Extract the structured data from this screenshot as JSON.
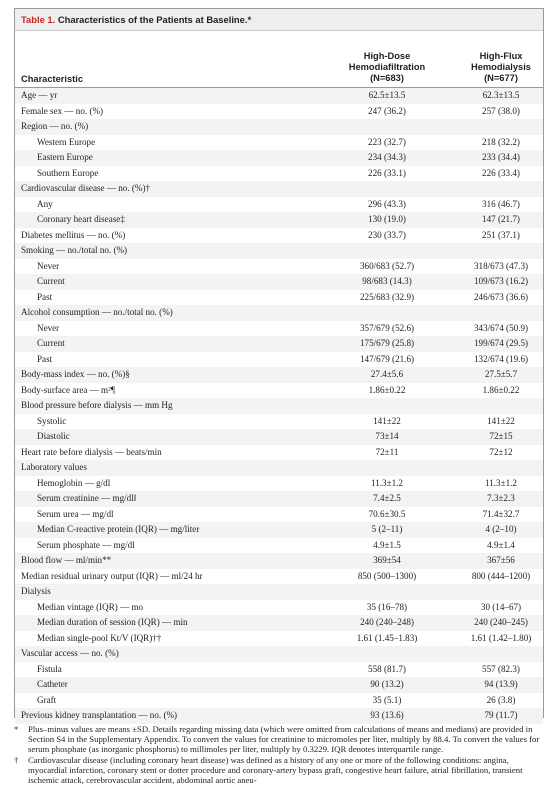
{
  "table": {
    "label": "Table 1.",
    "title": "Characteristics of the Patients at Baseline.*"
  },
  "headers": {
    "characteristic": "Characteristic",
    "col1": [
      "High-Dose",
      "Hemodiafiltration",
      "(N=683)"
    ],
    "col2": [
      "High-Flux",
      "Hemodialysis",
      "(N=677)"
    ]
  },
  "rows": [
    {
      "label": "Age — yr",
      "v1": "62.5±13.5",
      "v2": "62.3±13.5",
      "indent": false
    },
    {
      "label": "Female sex — no. (%)",
      "v1": "247 (36.2)",
      "v2": "257 (38.0)",
      "indent": false
    },
    {
      "label": "Region — no. (%)",
      "v1": "",
      "v2": "",
      "indent": false
    },
    {
      "label": "Western Europe",
      "v1": "223 (32.7)",
      "v2": "218 (32.2)",
      "indent": true
    },
    {
      "label": "Eastern Europe",
      "v1": "234 (34.3)",
      "v2": "233 (34.4)",
      "indent": true
    },
    {
      "label": "Southern Europe",
      "v1": "226 (33.1)",
      "v2": "226 (33.4)",
      "indent": true
    },
    {
      "label": "Cardiovascular disease — no. (%)†",
      "v1": "",
      "v2": "",
      "indent": false
    },
    {
      "label": "Any",
      "v1": "296 (43.3)",
      "v2": "316 (46.7)",
      "indent": true
    },
    {
      "label": "Coronary heart disease‡",
      "v1": "130 (19.0)",
      "v2": "147 (21.7)",
      "indent": true
    },
    {
      "label": "Diabetes mellitus — no. (%)",
      "v1": "230 (33.7)",
      "v2": "251 (37.1)",
      "indent": false
    },
    {
      "label": "Smoking — no./total no. (%)",
      "v1": "",
      "v2": "",
      "indent": false
    },
    {
      "label": "Never",
      "v1": "360/683 (52.7)",
      "v2": "318/673 (47.3)",
      "indent": true
    },
    {
      "label": "Current",
      "v1": "98/683 (14.3)",
      "v2": "109/673 (16.2)",
      "indent": true
    },
    {
      "label": "Past",
      "v1": "225/683 (32.9)",
      "v2": "246/673 (36.6)",
      "indent": true
    },
    {
      "label": "Alcohol consumption — no./total no. (%)",
      "v1": "",
      "v2": "",
      "indent": false
    },
    {
      "label": "Never",
      "v1": "357/679 (52.6)",
      "v2": "343/674 (50.9)",
      "indent": true
    },
    {
      "label": "Current",
      "v1": "175/679 (25.8)",
      "v2": "199/674 (29.5)",
      "indent": true
    },
    {
      "label": "Past",
      "v1": "147/679 (21.6)",
      "v2": "132/674 (19.6)",
      "indent": true
    },
    {
      "label": "Body-mass index — no. (%)§",
      "v1": "27.4±5.6",
      "v2": "27.5±5.7",
      "indent": false
    },
    {
      "label": "Body-surface area — m²¶",
      "v1": "1.86±0.22",
      "v2": "1.86±0.22",
      "indent": false
    },
    {
      "label": "Blood pressure before dialysis — mm Hg",
      "v1": "",
      "v2": "",
      "indent": false
    },
    {
      "label": "Systolic",
      "v1": "141±22",
      "v2": "141±22",
      "indent": true
    },
    {
      "label": "Diastolic",
      "v1": "73±14",
      "v2": "72±15",
      "indent": true
    },
    {
      "label": "Heart rate before dialysis — beats/min",
      "v1": "72±11",
      "v2": "72±12",
      "indent": false
    },
    {
      "label": "Laboratory values",
      "v1": "",
      "v2": "",
      "indent": false
    },
    {
      "label": "Hemoglobin — g/dl",
      "v1": "11.3±1.2",
      "v2": "11.3±1.2",
      "indent": true
    },
    {
      "label": "Serum creatinine — mg/dl‖",
      "v1": "7.4±2.5",
      "v2": "7.3±2.3",
      "indent": true
    },
    {
      "label": "Serum urea — mg/dl",
      "v1": "70.6±30.5",
      "v2": "71.4±32.7",
      "indent": true
    },
    {
      "label": "Median C-reactive protein (IQR) — mg/liter",
      "v1": "5 (2–11)",
      "v2": "4 (2–10)",
      "indent": true
    },
    {
      "label": "Serum phosphate — mg/dl",
      "v1": "4.9±1.5",
      "v2": "4.9±1.4",
      "indent": true
    },
    {
      "label": "Blood flow — ml/min**",
      "v1": "369±54",
      "v2": "367±56",
      "indent": false
    },
    {
      "label": "Median residual urinary output (IQR) — ml/24 hr",
      "v1": "850 (500–1300)",
      "v2": "800 (444–1200)",
      "indent": false
    },
    {
      "label": "Dialysis",
      "v1": "",
      "v2": "",
      "indent": false
    },
    {
      "label": "Median vintage (IQR) — mo",
      "v1": "35 (16–78)",
      "v2": "30 (14–67)",
      "indent": true
    },
    {
      "label": "Median duration of session (IQR) — min",
      "v1": "240 (240–248)",
      "v2": "240 (240–245)",
      "indent": true
    },
    {
      "label": "Median single-pool Kt/V (IQR)††",
      "v1": "1.61 (1.45–1.83)",
      "v2": "1.61 (1.42–1.80)",
      "indent": true
    },
    {
      "label": "Vascular access — no. (%)",
      "v1": "",
      "v2": "",
      "indent": false
    },
    {
      "label": "Fistula",
      "v1": "558 (81.7)",
      "v2": "557 (82.3)",
      "indent": true
    },
    {
      "label": "Catheter",
      "v1": "90 (13.2)",
      "v2": "94 (13.9)",
      "indent": true
    },
    {
      "label": "Graft",
      "v1": "35 (5.1)",
      "v2": "26 (3.8)",
      "indent": true
    },
    {
      "label": "Previous kidney transplantation — no. (%)",
      "v1": "93 (13.6)",
      "v2": "79 (11.7)",
      "indent": false
    }
  ],
  "footnotes": [
    {
      "symbol": "*",
      "text": "Plus–minus values are means ±SD. Details regarding missing data (which were omitted from calculations of means and medians) are provided in Section S4 in the Supplementary Appendix. To convert the values for creatinine to micromoles per liter, multiply by 88.4. To convert the values for serum phosphate (as inorganic phosphorus) to millimoles per liter, multiply by 0.3229. IQR denotes interquartile range."
    },
    {
      "symbol": "†",
      "text": "Cardiovascular disease (including coronary heart disease) was defined as a history of any one or more of the following conditions: angina, myocardial infarction, coronary stent or dotter procedure and coronary-artery bypass graft, congestive heart failure, atrial fibrillation, transient ischemic attack, cerebrovascular accident, abdominal aortic aneu-"
    }
  ]
}
